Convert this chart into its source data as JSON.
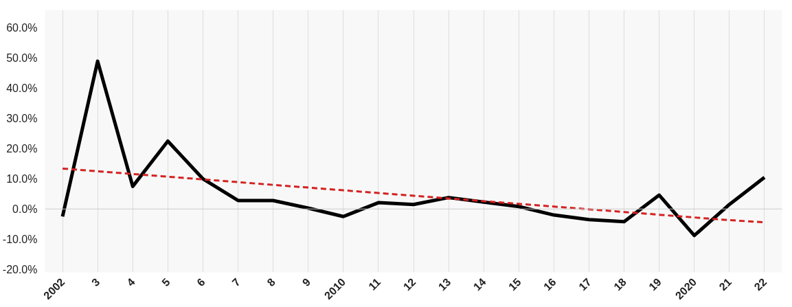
{
  "chart_data": {
    "type": "line",
    "categories": [
      "2002",
      "3",
      "4",
      "5",
      "6",
      "7",
      "8",
      "9",
      "2010",
      "11",
      "12",
      "13",
      "14",
      "15",
      "16",
      "17",
      "18",
      "19",
      "2020",
      "21",
      "22"
    ],
    "series": [
      {
        "color": "#000000",
        "values": [
          -2.5,
          49,
          7.5,
          22.5,
          10,
          2.8,
          2.8,
          0.3,
          -2.5,
          2.1,
          1.5,
          3.8,
          2.3,
          0.8,
          -2,
          -3.5,
          -4.2,
          4.6,
          -8.8,
          1.5,
          10.5
        ]
      },
      {
        "color": "#d42121",
        "line_style": "dashed",
        "values": [
          13.4,
          12.5,
          11.6,
          10.7,
          9.8,
          8.9,
          8,
          7.1,
          6.2,
          5.3,
          4.4,
          3.5,
          2.6,
          1.7,
          0.8,
          -0.1,
          -1,
          -1.9,
          -2.8,
          -3.7,
          -4.4
        ]
      }
    ],
    "ylim": [
      -21,
      66
    ],
    "yticks": [
      {
        "value": -20,
        "label": "-20.0%"
      },
      {
        "value": -10,
        "label": "-10.0%"
      },
      {
        "value": 0,
        "label": "0.0%"
      },
      {
        "value": 10,
        "label": "10.0%"
      },
      {
        "value": 20,
        "label": "20.0%"
      },
      {
        "value": 30,
        "label": "30.0%"
      },
      {
        "value": 40,
        "label": "40.0%"
      },
      {
        "value": 50,
        "label": "50.0%"
      },
      {
        "value": 60,
        "label": "60.0%"
      }
    ],
    "grid": "x",
    "marker": "none",
    "line_style": "solid"
  }
}
